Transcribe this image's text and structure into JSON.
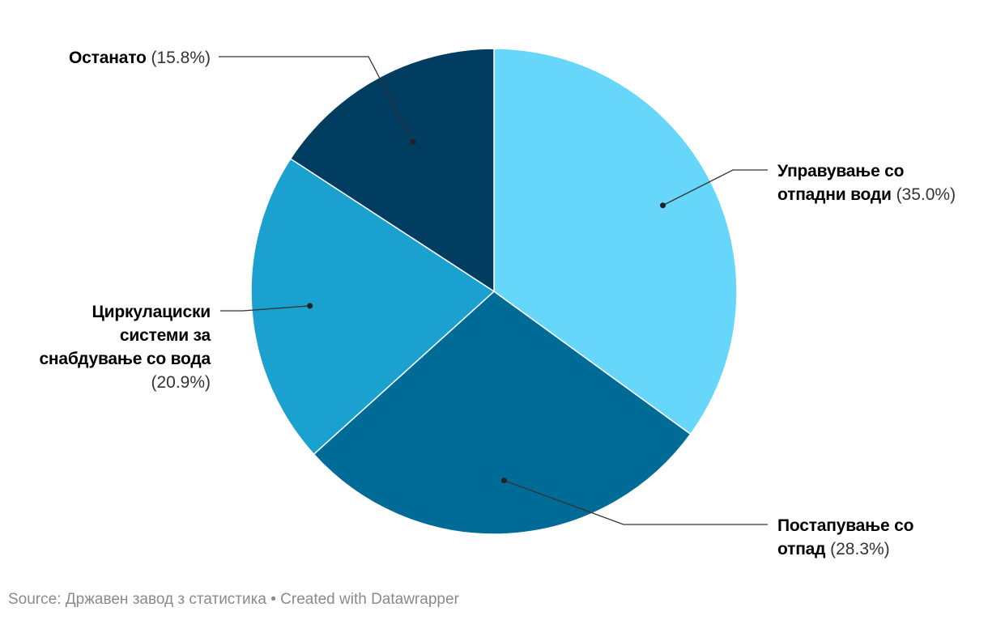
{
  "chart_data": {
    "type": "pie",
    "title": "",
    "slices": [
      {
        "label": "Управување со отпадни води",
        "label_lines": [
          "Управување со",
          "отпадни води"
        ],
        "value": 35.0,
        "pct_text": "(35.0%)",
        "color": "#67d6fb"
      },
      {
        "label": "Постапување со отпад",
        "label_lines": [
          "Постапување со",
          "отпад"
        ],
        "value": 28.3,
        "pct_text": "(28.3%)",
        "color": "#006b96"
      },
      {
        "label": "Циркулациски системи за снабдување со вода",
        "label_lines": [
          "Циркулациски",
          "системи за",
          "снабдување со вода"
        ],
        "value": 20.9,
        "pct_text": "(20.9%)",
        "color": "#1aa1cf"
      },
      {
        "label": "Останато",
        "label_lines": [
          "Останато"
        ],
        "value": 15.8,
        "pct_text": "(15.8%)",
        "color": "#003d61"
      }
    ]
  },
  "footer": {
    "source": "Source: Државен завод з статистика",
    "separator": " • ",
    "credit": "Created with Datawrapper"
  }
}
